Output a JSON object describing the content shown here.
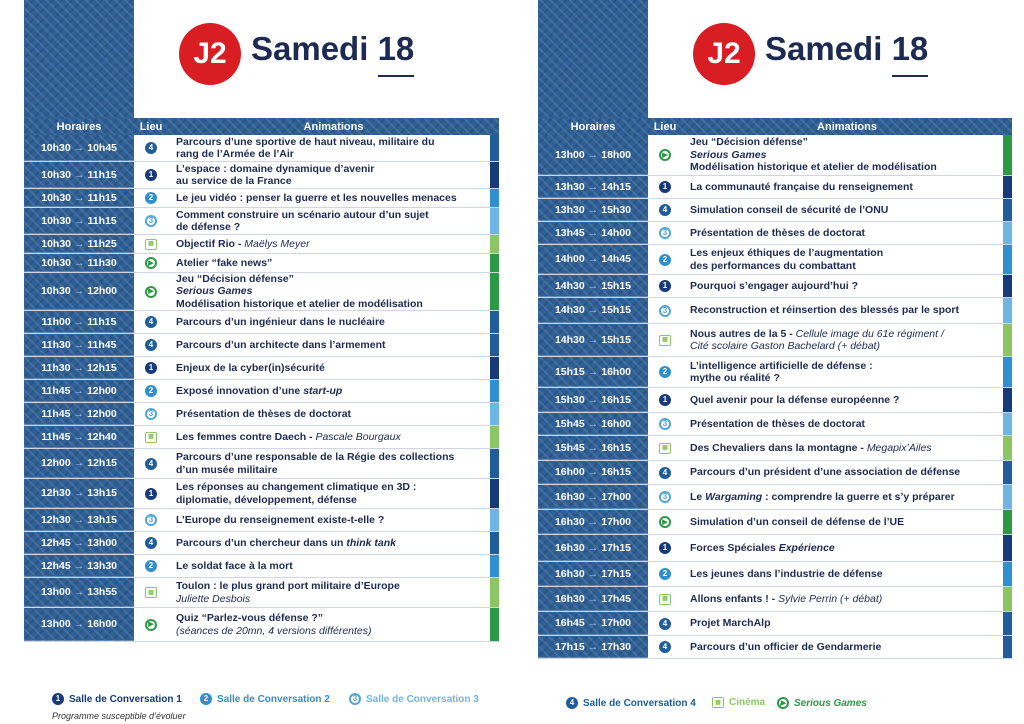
{
  "colors": {
    "s1": "#173a7a",
    "s2": "#2f8fd0",
    "s3": "#6fb5e3",
    "s4": "#1f5d9b",
    "cinema": "#8cc563",
    "serious": "#2c9a45",
    "badge": "#d91e23"
  },
  "icons": {
    "s1": "1",
    "s2": "2",
    "s3": "3",
    "s4": "4",
    "cinema": "film-icon",
    "serious": "play-circle-icon"
  },
  "pages": [
    {
      "badge": "J2",
      "day": "Samedi",
      "date": "18",
      "headers": {
        "time": "Horaires",
        "place": "Lieu",
        "anim": "Animations"
      },
      "rows": [
        {
          "start": "10h30",
          "end": "10h45",
          "place": "s4",
          "lines": [
            [
              {
                "t": "Parcours d’une sportive de haut niveau, militaire du"
              }
            ],
            [
              {
                "t": "rang de l’Armée de l’Air"
              }
            ]
          ]
        },
        {
          "start": "10h30",
          "end": "11h15",
          "place": "s1",
          "lines": [
            [
              {
                "t": "L’espace : domaine dynamique d’avenir"
              }
            ],
            [
              {
                "t": "au service de la France"
              }
            ]
          ]
        },
        {
          "start": "10h30",
          "end": "11h15",
          "place": "s2",
          "lines": [
            [
              {
                "t": "Le jeu vidéo : penser la guerre et les nouvelles menaces"
              }
            ]
          ]
        },
        {
          "start": "10h30",
          "end": "11h15",
          "place": "s3",
          "lines": [
            [
              {
                "t": "Comment construire un scénario autour d’un sujet"
              }
            ],
            [
              {
                "t": "de défense ?"
              }
            ]
          ]
        },
        {
          "start": "10h30",
          "end": "11h25",
          "place": "cinema",
          "lines": [
            [
              {
                "t": "Objectif Rio - "
              },
              {
                "t": "Maëlys Meyer",
                "s": "it"
              }
            ]
          ]
        },
        {
          "start": "10h30",
          "end": "11h30",
          "place": "serious",
          "lines": [
            [
              {
                "t": "Atelier “fake news”"
              }
            ]
          ]
        },
        {
          "start": "10h30",
          "end": "12h00",
          "place": "serious",
          "lines": [
            [
              {
                "t": "Jeu “Décision défense”"
              }
            ],
            [
              {
                "t": "Serious Games",
                "s": "itb"
              }
            ],
            [
              {
                "t": "Modélisation historique et atelier de modélisation"
              }
            ]
          ]
        },
        {
          "start": "11h00",
          "end": "11h15",
          "place": "s4",
          "lines": [
            [
              {
                "t": "Parcours d’un ingénieur dans le nucléaire"
              }
            ]
          ]
        },
        {
          "start": "11h30",
          "end": "11h45",
          "place": "s4",
          "lines": [
            [
              {
                "t": "Parcours d’un architecte dans l’armement"
              }
            ]
          ]
        },
        {
          "start": "11h30",
          "end": "12h15",
          "place": "s1",
          "lines": [
            [
              {
                "t": "Enjeux de la cyber(in)sécurité"
              }
            ]
          ]
        },
        {
          "start": "11h45",
          "end": "12h00",
          "place": "s2",
          "lines": [
            [
              {
                "t": "Exposé innovation d’une "
              },
              {
                "t": "start-up",
                "s": "itb"
              }
            ]
          ]
        },
        {
          "start": "11h45",
          "end": "12h00",
          "place": "s3",
          "lines": [
            [
              {
                "t": "Présentation de thèses de doctorat"
              }
            ]
          ]
        },
        {
          "start": "11h45",
          "end": "12h40",
          "place": "cinema",
          "lines": [
            [
              {
                "t": "Les femmes contre Daech - "
              },
              {
                "t": "Pascale Bourgaux",
                "s": "it"
              }
            ]
          ]
        },
        {
          "start": "12h00",
          "end": "12h15",
          "place": "s4",
          "lines": [
            [
              {
                "t": "Parcours d’une responsable de la Régie des collections"
              }
            ],
            [
              {
                "t": "d’un musée militaire"
              }
            ]
          ]
        },
        {
          "start": "12h30",
          "end": "13h15",
          "place": "s1",
          "lines": [
            [
              {
                "t": "Les réponses au changement climatique en 3D :"
              }
            ],
            [
              {
                "t": "diplomatie, développement, défense"
              }
            ]
          ]
        },
        {
          "start": "12h30",
          "end": "13h15",
          "place": "s3",
          "lines": [
            [
              {
                "t": "L’Europe du renseignement existe-t-elle ?"
              }
            ]
          ]
        },
        {
          "start": "12h45",
          "end": "13h00",
          "place": "s4",
          "lines": [
            [
              {
                "t": "Parcours d’un chercheur dans un "
              },
              {
                "t": "think tank",
                "s": "itb"
              }
            ]
          ]
        },
        {
          "start": "12h45",
          "end": "13h30",
          "place": "s2",
          "lines": [
            [
              {
                "t": "Le soldat face à la mort"
              }
            ]
          ]
        },
        {
          "start": "13h00",
          "end": "13h55",
          "place": "cinema",
          "lines": [
            [
              {
                "t": "Toulon : le plus grand port militaire d’Europe"
              }
            ],
            [
              {
                "t": "Juliette Desbois",
                "s": "it"
              }
            ]
          ]
        },
        {
          "start": "13h00",
          "end": "16h00",
          "place": "serious",
          "lines": [
            [
              {
                "t": "Quiz “Parlez-vous défense ?”"
              }
            ],
            [
              {
                "t": "(séances de 20mn, 4 versions différentes)",
                "s": "it"
              }
            ]
          ]
        }
      ],
      "legend": [
        {
          "key": "s1",
          "label": "Salle de Conversation 1"
        },
        {
          "key": "s2",
          "label": "Salle de Conversation 2"
        },
        {
          "key": "s3",
          "label": "Salle de Conversation 3"
        }
      ],
      "note": "Programme susceptible d’évoluer"
    },
    {
      "badge": "J2",
      "day": "Samedi",
      "date": "18",
      "headers": {
        "time": "Horaires",
        "place": "Lieu",
        "anim": "Animations"
      },
      "rows": [
        {
          "start": "13h00",
          "end": "18h00",
          "place": "serious",
          "lines": [
            [
              {
                "t": "Jeu “Décision défense”"
              }
            ],
            [
              {
                "t": "Serious Games",
                "s": "itb"
              }
            ],
            [
              {
                "t": "Modélisation historique et atelier de modélisation"
              }
            ]
          ]
        },
        {
          "start": "13h30",
          "end": "14h15",
          "place": "s1",
          "lines": [
            [
              {
                "t": "La communauté française du renseignement"
              }
            ]
          ]
        },
        {
          "start": "13h30",
          "end": "15h30",
          "place": "s4",
          "lines": [
            [
              {
                "t": "Simulation conseil de sécurité de l’ONU"
              }
            ]
          ]
        },
        {
          "start": "13h45",
          "end": "14h00",
          "place": "s3",
          "lines": [
            [
              {
                "t": "Présentation de thèses de doctorat"
              }
            ]
          ]
        },
        {
          "start": "14h00",
          "end": "14h45",
          "place": "s2",
          "lines": [
            [
              {
                "t": "Les enjeux éthiques de l’augmentation"
              }
            ],
            [
              {
                "t": "des performances du combattant"
              }
            ]
          ]
        },
        {
          "start": "14h30",
          "end": "15h15",
          "place": "s1",
          "lines": [
            [
              {
                "t": "Pourquoi s’engager aujourd’hui ?"
              }
            ]
          ]
        },
        {
          "start": "14h30",
          "end": "15h15",
          "place": "s3",
          "lines": [
            [
              {
                "t": "Reconstruction et réinsertion des blessés par le sport"
              }
            ]
          ]
        },
        {
          "start": "14h30",
          "end": "15h15",
          "place": "cinema",
          "lines": [
            [
              {
                "t": "Nous autres de la 5 - "
              },
              {
                "t": "Cellule image du 61e régiment /",
                "s": "it"
              }
            ],
            [
              {
                "t": "Cité scolaire Gaston Bachelard (+ débat)",
                "s": "it"
              }
            ]
          ]
        },
        {
          "start": "15h15",
          "end": "16h00",
          "place": "s2",
          "lines": [
            [
              {
                "t": "L’intelligence artificielle de défense :"
              }
            ],
            [
              {
                "t": "mythe ou réalité ?"
              }
            ]
          ]
        },
        {
          "start": "15h30",
          "end": "16h15",
          "place": "s1",
          "lines": [
            [
              {
                "t": "Quel avenir pour la défense européenne ?"
              }
            ]
          ]
        },
        {
          "start": "15h45",
          "end": "16h00",
          "place": "s3",
          "lines": [
            [
              {
                "t": "Présentation de thèses de doctorat"
              }
            ]
          ]
        },
        {
          "start": "15h45",
          "end": "16h15",
          "place": "cinema",
          "lines": [
            [
              {
                "t": "Des Chevaliers dans la montagne - "
              },
              {
                "t": "Megapix’Ailes",
                "s": "it"
              }
            ]
          ]
        },
        {
          "start": "16h00",
          "end": "16h15",
          "place": "s4",
          "lines": [
            [
              {
                "t": "Parcours d’un président d’une association de défense"
              }
            ]
          ]
        },
        {
          "start": "16h30",
          "end": "17h00",
          "place": "s3",
          "lines": [
            [
              {
                "t": "Le "
              },
              {
                "t": "Wargaming",
                "s": "itb"
              },
              {
                "t": " : comprendre la guerre et s’y préparer"
              }
            ]
          ]
        },
        {
          "start": "16h30",
          "end": "17h00",
          "place": "serious",
          "lines": [
            [
              {
                "t": "Simulation d’un conseil de défense de l’UE"
              }
            ]
          ]
        },
        {
          "start": "16h30",
          "end": "17h15",
          "place": "s1",
          "lines": [
            [
              {
                "t": "Forces Spéciales "
              },
              {
                "t": "Expérience",
                "s": "itb"
              }
            ]
          ]
        },
        {
          "start": "16h30",
          "end": "17h15",
          "place": "s2",
          "lines": [
            [
              {
                "t": "Les jeunes dans l’industrie de défense"
              }
            ]
          ]
        },
        {
          "start": "16h30",
          "end": "17h45",
          "place": "cinema",
          "lines": [
            [
              {
                "t": "Allons enfants ! - "
              },
              {
                "t": "Sylvie Perrin (+ débat)",
                "s": "it"
              }
            ]
          ]
        },
        {
          "start": "16h45",
          "end": "17h00",
          "place": "s4",
          "lines": [
            [
              {
                "t": "Projet MarchAlp"
              }
            ]
          ]
        },
        {
          "start": "17h15",
          "end": "17h30",
          "place": "s4",
          "lines": [
            [
              {
                "t": "Parcours d’un officier de Gendarmerie"
              }
            ]
          ]
        }
      ],
      "legend": [
        {
          "key": "s4",
          "label": "Salle de Conversation 4"
        },
        {
          "key": "cinema",
          "label": "Cinéma"
        },
        {
          "key": "serious",
          "label": "Serious Games",
          "s": "it"
        }
      ]
    }
  ]
}
